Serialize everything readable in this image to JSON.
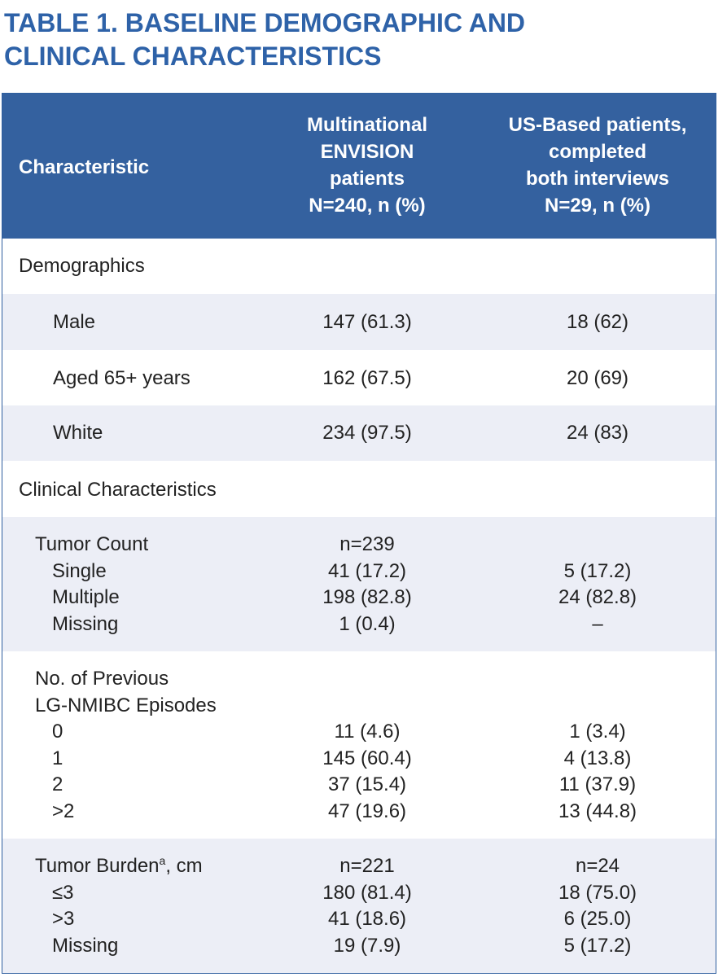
{
  "title": {
    "line1": "TABLE 1. BASELINE DEMOGRAPHIC AND",
    "line2": "CLINICAL CHARACTERISTICS"
  },
  "header": {
    "characteristic": "Characteristic",
    "col1": [
      "Multinational",
      "ENVISION",
      "patients",
      "N=240, n (%)"
    ],
    "col2": [
      "US-Based patients,",
      "completed",
      "both interviews",
      "N=29, n (%)"
    ]
  },
  "sections": {
    "demographics": "Demographics",
    "clinical": "Clinical Characteristics"
  },
  "demographics": {
    "male": {
      "label": "Male",
      "col1": "147 (61.3)",
      "col2": "18 (62)"
    },
    "aged": {
      "label": "Aged 65+ years",
      "col1": "162 (67.5)",
      "col2": "20 (69)"
    },
    "white": {
      "label": "White",
      "col1": "234 (97.5)",
      "col2": "24 (83)"
    }
  },
  "tumor_count": {
    "label": "Tumor Count",
    "n_col1": "n=239",
    "single": {
      "label": "Single",
      "col1": "41 (17.2)",
      "col2": "5 (17.2)"
    },
    "multiple": {
      "label": "Multiple",
      "col1": "198 (82.8)",
      "col2": "24 (82.8)"
    },
    "missing": {
      "label": "Missing",
      "col1": "1 (0.4)",
      "col2": "–"
    }
  },
  "previous_episodes": {
    "label_line1": "No. of Previous",
    "label_line2": "LG-NMIBC Episodes",
    "r0": {
      "label": "0",
      "col1": "11 (4.6)",
      "col2": "1 (3.4)"
    },
    "r1": {
      "label": "1",
      "col1": "145 (60.4)",
      "col2": "4 (13.8)"
    },
    "r2": {
      "label": "2",
      "col1": "37 (15.4)",
      "col2": "11 (37.9)"
    },
    "r3": {
      "label": ">2",
      "col1": "47 (19.6)",
      "col2": "13 (44.8)"
    }
  },
  "tumor_burden": {
    "label": "Tumor Burden",
    "label_sup": "a",
    "label_unit": ", cm",
    "n_col1": "n=221",
    "n_col2": "n=24",
    "le3": {
      "label": "≤3",
      "col1": "180 (81.4)",
      "col2": "18 (75.0)"
    },
    "gt3": {
      "label": ">3",
      "col1": "41 (18.6)",
      "col2": "6 (25.0)"
    },
    "missing": {
      "label": "Missing",
      "col1": "19 (7.9)",
      "col2": "5 (17.2)"
    }
  }
}
